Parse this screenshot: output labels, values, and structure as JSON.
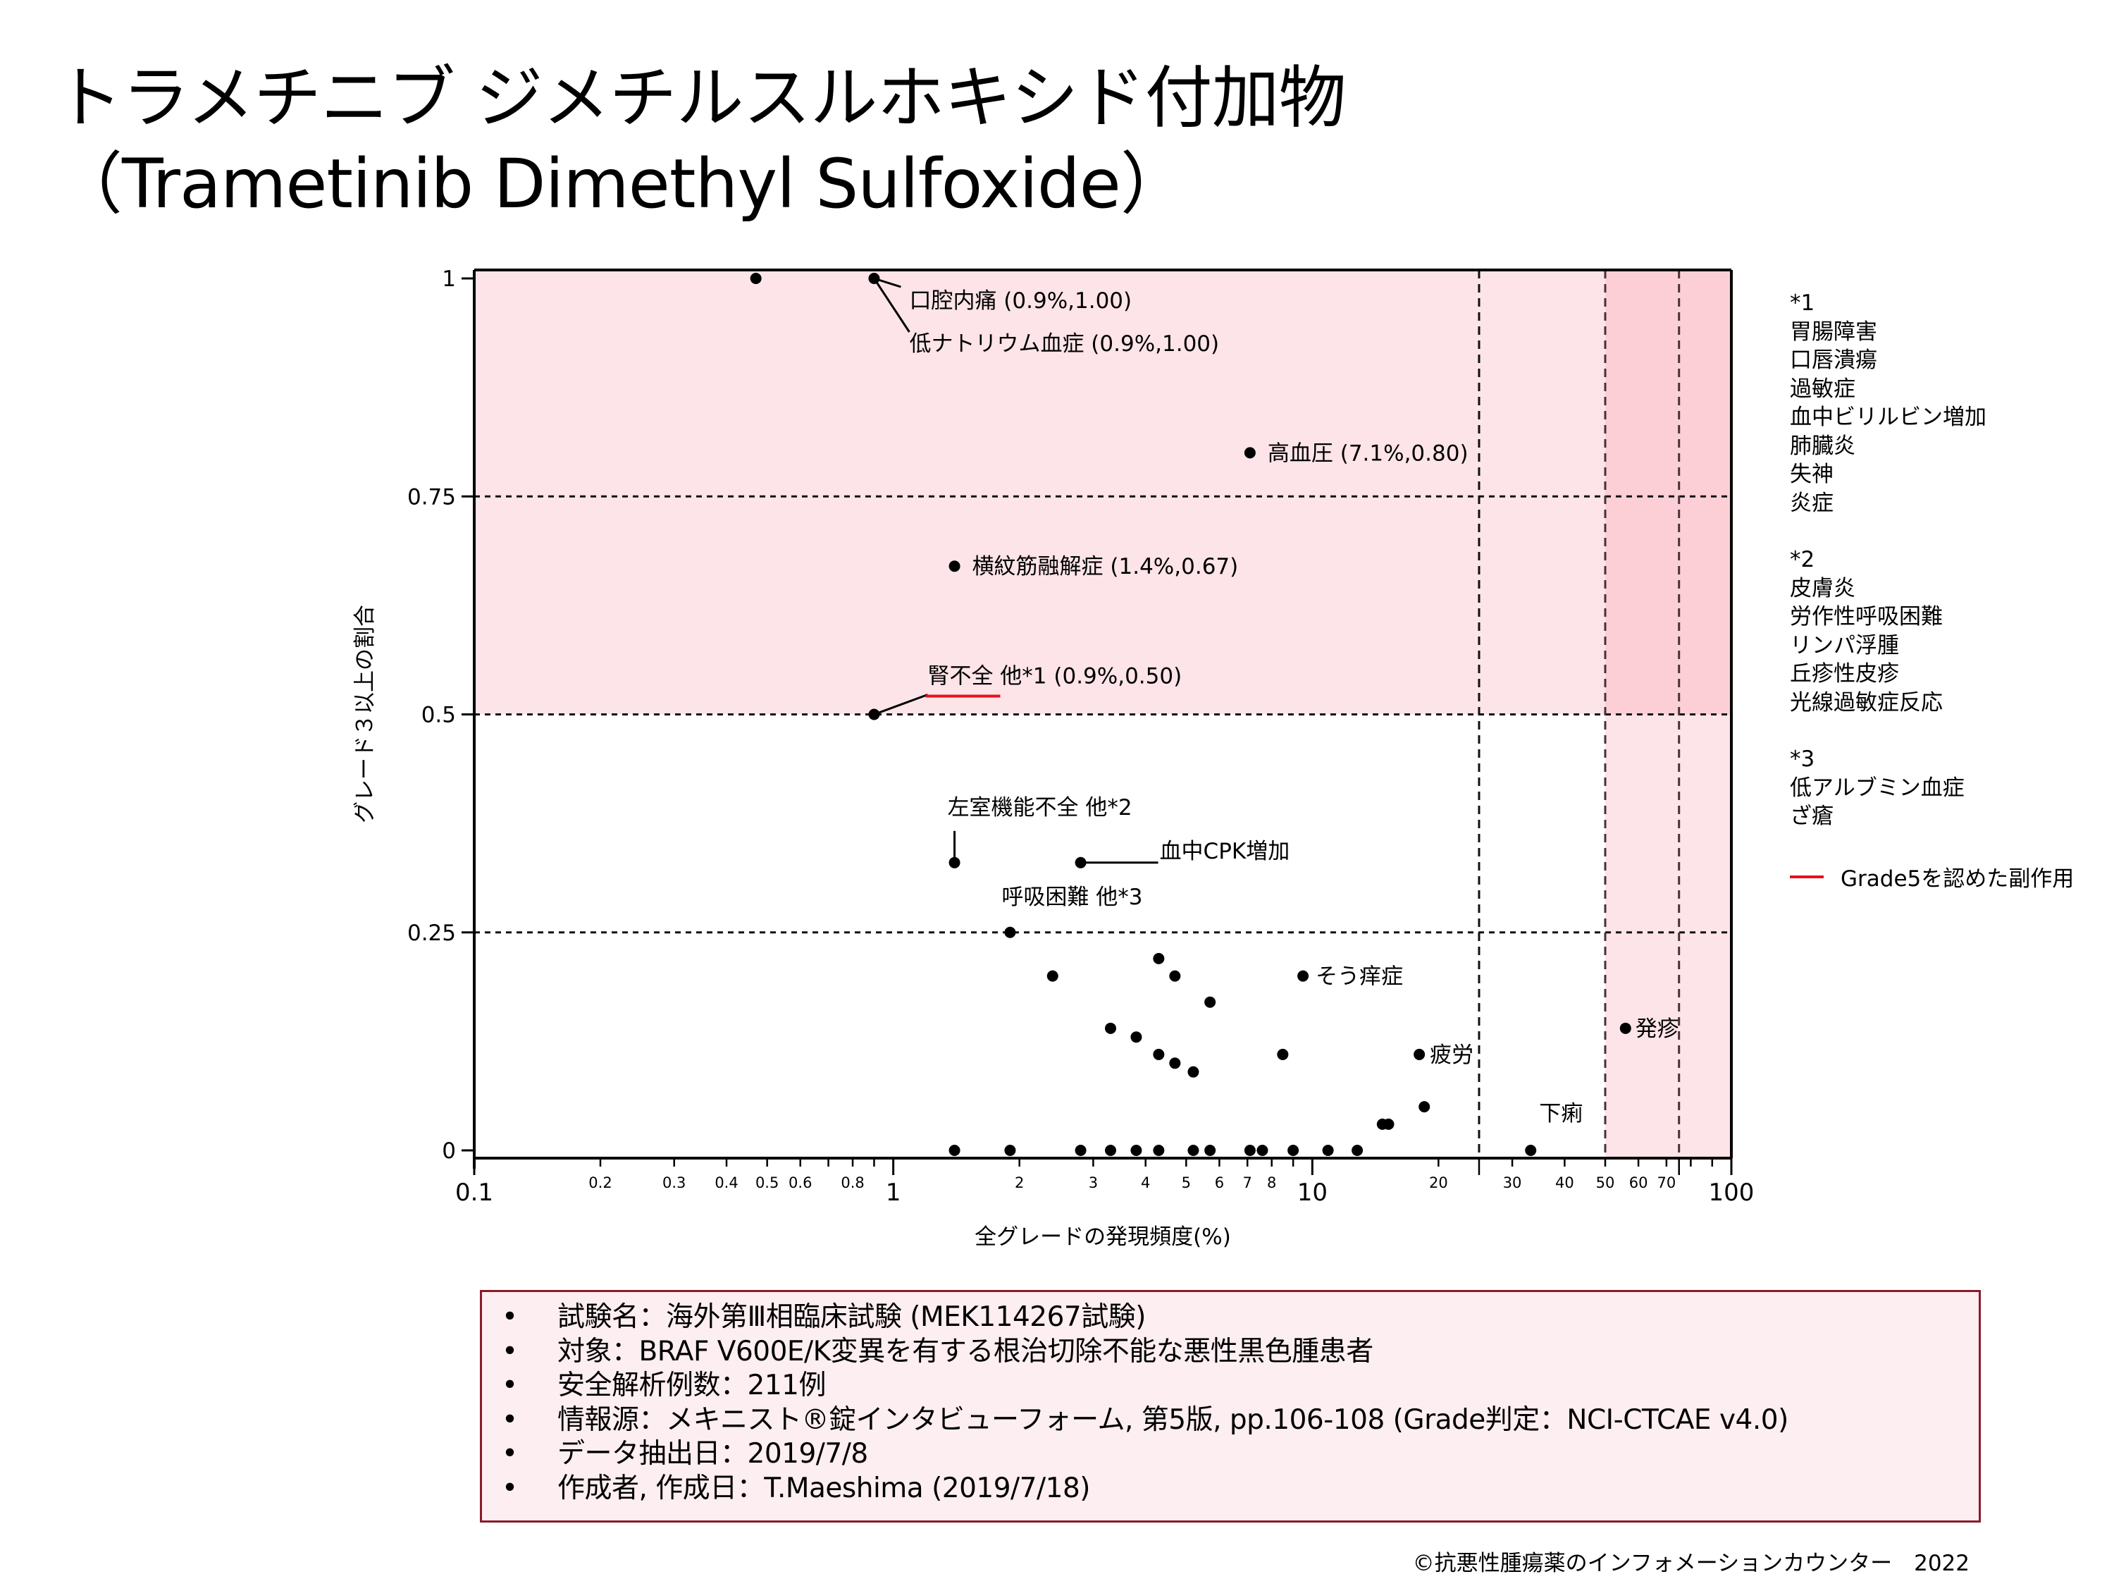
{
  "title": {
    "line1": "トラメチニブ ジメチルスルホキシド付加物",
    "line2": "（Trametinib Dimethyl Sulfoxide）"
  },
  "colors": {
    "region_light": "#fde4e8",
    "region_dark": "#fccfd7",
    "grade5": "#e8101c",
    "box_border": "#8b1a2b",
    "box_fill": "#fdeef1",
    "vline": "#4a3038"
  },
  "chart_data": {
    "type": "scatter",
    "xlabel": "全グレードの発現頻度(%)",
    "ylabel": "グレード３以上の割合",
    "xscale": "log",
    "xlim": [
      0.1,
      100
    ],
    "ylim": [
      0,
      1
    ],
    "y_ticks": [
      {
        "value": 0,
        "label": "0"
      },
      {
        "value": 0.25,
        "label": "0.25"
      },
      {
        "value": 0.5,
        "label": "0.5"
      },
      {
        "value": 0.75,
        "label": "0.75"
      },
      {
        "value": 1,
        "label": "1"
      }
    ],
    "x_major_ticks": [
      {
        "value": 0.1,
        "label": "0.1"
      },
      {
        "value": 1,
        "label": "1"
      },
      {
        "value": 10,
        "label": "10"
      },
      {
        "value": 100,
        "label": "100"
      }
    ],
    "x_minor_ticks": [
      {
        "value": 0.2,
        "label": "0.2"
      },
      {
        "value": 0.3,
        "label": "0.3"
      },
      {
        "value": 0.4,
        "label": "0.4"
      },
      {
        "value": 0.5,
        "label": "0.5"
      },
      {
        "value": 0.6,
        "label": "0.6"
      },
      {
        "value": 0.7,
        "label": ""
      },
      {
        "value": 0.8,
        "label": "0.8"
      },
      {
        "value": 0.9,
        "label": ""
      },
      {
        "value": 2,
        "label": "2"
      },
      {
        "value": 3,
        "label": "3"
      },
      {
        "value": 4,
        "label": "4"
      },
      {
        "value": 5,
        "label": "5"
      },
      {
        "value": 6,
        "label": "6"
      },
      {
        "value": 7,
        "label": "7"
      },
      {
        "value": 8,
        "label": "8"
      },
      {
        "value": 9,
        "label": ""
      },
      {
        "value": 20,
        "label": "20"
      },
      {
        "value": 25,
        "label": ""
      },
      {
        "value": 30,
        "label": "30"
      },
      {
        "value": 40,
        "label": "40"
      },
      {
        "value": 50,
        "label": "50"
      },
      {
        "value": 60,
        "label": "60"
      },
      {
        "value": 70,
        "label": "70"
      },
      {
        "value": 75,
        "label": ""
      },
      {
        "value": 80,
        "label": ""
      },
      {
        "value": 90,
        "label": ""
      }
    ],
    "h_gridlines": [
      0.25,
      0.5,
      0.75
    ],
    "v_gridlines": [
      25,
      50,
      75
    ],
    "shaded_regions": [
      {
        "x": [
          0.1,
          100
        ],
        "y": [
          0.5,
          1
        ],
        "shade": "light"
      },
      {
        "x": [
          50,
          100
        ],
        "y": [
          0,
          0.5
        ],
        "shade": "light"
      },
      {
        "x": [
          50,
          100
        ],
        "y": [
          0.5,
          1
        ],
        "shade": "dark"
      }
    ],
    "points": [
      {
        "x": 0.47,
        "y": 1.0
      },
      {
        "x": 0.9,
        "y": 1.0
      },
      {
        "x": 7.1,
        "y": 0.8
      },
      {
        "x": 1.4,
        "y": 0.67
      },
      {
        "x": 0.9,
        "y": 0.5
      },
      {
        "x": 1.4,
        "y": 0.33
      },
      {
        "x": 2.8,
        "y": 0.33
      },
      {
        "x": 1.9,
        "y": 0.25
      },
      {
        "x": 2.4,
        "y": 0.2
      },
      {
        "x": 4.3,
        "y": 0.22
      },
      {
        "x": 4.7,
        "y": 0.2
      },
      {
        "x": 9.5,
        "y": 0.2
      },
      {
        "x": 5.7,
        "y": 0.17
      },
      {
        "x": 3.3,
        "y": 0.14
      },
      {
        "x": 3.8,
        "y": 0.13
      },
      {
        "x": 4.3,
        "y": 0.11
      },
      {
        "x": 4.7,
        "y": 0.1
      },
      {
        "x": 5.2,
        "y": 0.09
      },
      {
        "x": 8.5,
        "y": 0.11
      },
      {
        "x": 18.0,
        "y": 0.11
      },
      {
        "x": 18.5,
        "y": 0.05
      },
      {
        "x": 14.7,
        "y": 0.03
      },
      {
        "x": 15.2,
        "y": 0.03
      },
      {
        "x": 55.9,
        "y": 0.14
      },
      {
        "x": 33.2,
        "y": 0.0
      },
      {
        "x": 1.4,
        "y": 0.0
      },
      {
        "x": 1.9,
        "y": 0.0
      },
      {
        "x": 2.8,
        "y": 0.0
      },
      {
        "x": 3.3,
        "y": 0.0
      },
      {
        "x": 3.8,
        "y": 0.0
      },
      {
        "x": 4.3,
        "y": 0.0
      },
      {
        "x": 5.2,
        "y": 0.0
      },
      {
        "x": 5.7,
        "y": 0.0
      },
      {
        "x": 7.1,
        "y": 0.0
      },
      {
        "x": 7.6,
        "y": 0.0
      },
      {
        "x": 9.0,
        "y": 0.0
      },
      {
        "x": 10.9,
        "y": 0.0
      },
      {
        "x": 12.8,
        "y": 0.0
      }
    ],
    "annotations": [
      {
        "text": "口腔内痛 (0.9%,1.00)",
        "x": 0.9,
        "y": 1.0
      },
      {
        "text": "低ナトリウム血症 (0.9%,1.00)",
        "x": 0.9,
        "y": 1.0
      },
      {
        "text": "高血圧 (7.1%,0.80)",
        "x": 7.1,
        "y": 0.8
      },
      {
        "text": "横紋筋融解症 (1.4%,0.67)",
        "x": 1.4,
        "y": 0.67
      },
      {
        "text_grade5": "腎不全",
        "text_rest": " 他*1 (0.9%,0.50)",
        "x": 0.9,
        "y": 0.5
      },
      {
        "text": "左室機能不全 他*2",
        "x": 1.4,
        "y": 0.33
      },
      {
        "text": "血中CPK増加",
        "x": 2.8,
        "y": 0.33
      },
      {
        "text": "呼吸困難 他*3",
        "x": 1.9,
        "y": 0.25
      },
      {
        "text": "そう痒症",
        "x": 9.5,
        "y": 0.2
      },
      {
        "text": "疲労",
        "x": 18.0,
        "y": 0.11
      },
      {
        "text": "下痢",
        "x": 33.2,
        "y": 0.0
      },
      {
        "text": "発疹",
        "x": 55.9,
        "y": 0.14
      }
    ]
  },
  "notes": [
    {
      "mark": "*1",
      "items": [
        "胃腸障害",
        "口唇潰瘍",
        "過敏症",
        "血中ビリルビン増加",
        "肺臓炎",
        "失神",
        "炎症"
      ]
    },
    {
      "mark": "*2",
      "items": [
        "皮膚炎",
        "労作性呼吸困難",
        "リンパ浮腫",
        "丘疹性皮疹",
        "光線過敏症反応"
      ]
    },
    {
      "mark": "*3",
      "items": [
        "低アルブミン血症",
        "ざ瘡"
      ]
    }
  ],
  "legend": {
    "label": "Grade5を認めた副作用"
  },
  "info": {
    "bullet": "•",
    "lines": [
      "試験名：海外第Ⅲ相臨床試験 (MEK114267試験)",
      "対象：BRAF V600E/K変異を有する根治切除不能な悪性黒色腫患者",
      "安全解析例数：211例",
      "情報源：メキニスト®錠インタビューフォーム, 第5版, pp.106-108 (Grade判定：NCI-CTCAE v4.0)",
      "データ抽出日：2019/7/8",
      "作成者, 作成日：T.Maeshima (2019/7/18)"
    ]
  },
  "copyright": "©抗悪性腫瘍薬のインフォメーションカウンター　2022"
}
